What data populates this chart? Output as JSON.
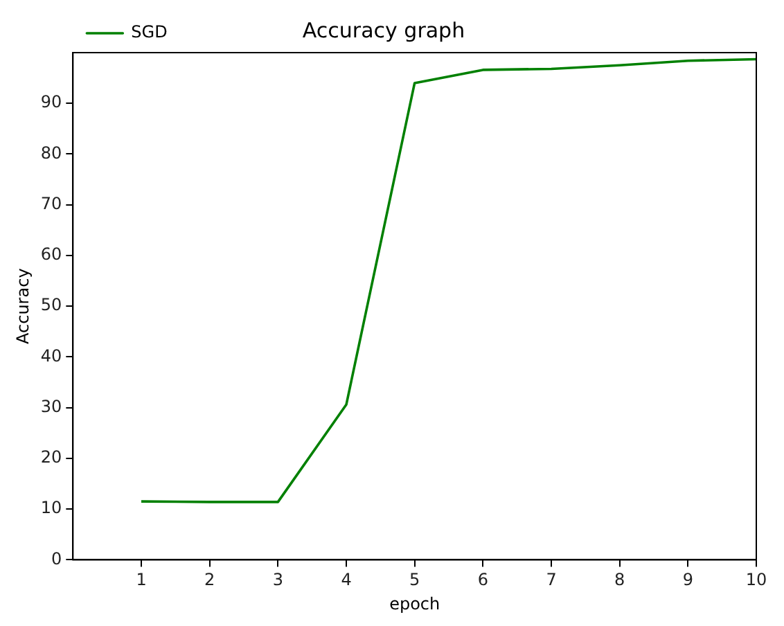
{
  "chart_data": {
    "type": "line",
    "title": "Accuracy graph",
    "xlabel": "epoch",
    "ylabel": "Accuracy",
    "x": [
      1,
      2,
      3,
      4,
      5,
      6,
      7,
      8,
      9,
      10
    ],
    "series": [
      {
        "name": "SGD",
        "color": "#008000",
        "values": [
          11.5,
          11.4,
          11.4,
          30.6,
          94.0,
          96.6,
          96.8,
          97.5,
          98.4,
          98.7
        ]
      }
    ],
    "xlim": [
      0,
      10
    ],
    "xticks": [
      1,
      2,
      3,
      4,
      5,
      6,
      7,
      8,
      9,
      10
    ],
    "ylim": [
      0,
      100
    ],
    "yticks": [
      0,
      10,
      20,
      30,
      40,
      50,
      60,
      70,
      80,
      90
    ],
    "grid": false,
    "legend": "top left",
    "marker": "none",
    "line_style": "solid"
  }
}
